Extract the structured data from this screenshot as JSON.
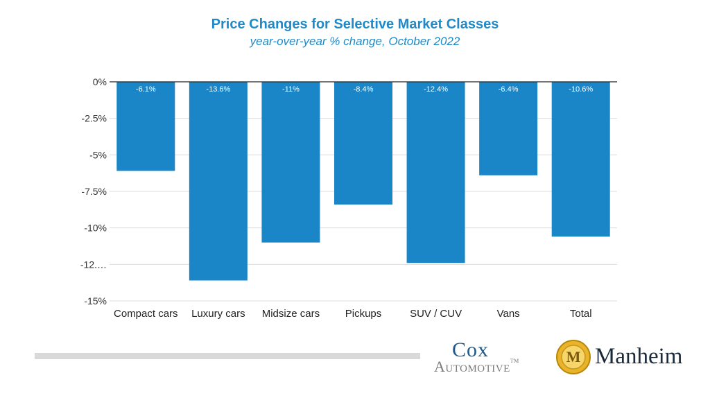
{
  "title": "Price Changes for Selective Market Classes",
  "subtitle": "year-over-year % change, October 2022",
  "colors": {
    "bar": "#1a86c8",
    "title": "#1f8ac7",
    "grid": "#dcdcdc",
    "axis": "#222222"
  },
  "chart_data": {
    "type": "bar",
    "title": "Price Changes for Selective Market Classes",
    "subtitle": "year-over-year % change, October 2022",
    "categories": [
      "Compact cars",
      "Luxury cars",
      "Midsize cars",
      "Pickups",
      "SUV / CUV",
      "Vans",
      "Total"
    ],
    "values": [
      -6.1,
      -13.6,
      -11,
      -8.4,
      -12.4,
      -6.4,
      -10.6
    ],
    "data_labels": [
      "-6.1%",
      "-13.6%",
      "-11%",
      "-8.4%",
      "-12.4%",
      "-6.4%",
      "-10.6%"
    ],
    "yticks": [
      0,
      -2.5,
      -5,
      -7.5,
      -10,
      -12.5,
      -15
    ],
    "ytick_labels": [
      "0%",
      "-2.5%",
      "-5%",
      "-7.5%",
      "-10%",
      "-12.…",
      "-15%"
    ],
    "ylim": [
      -15,
      0
    ],
    "xlabel": "",
    "ylabel": "",
    "grid": true,
    "legend": "none"
  },
  "logos": {
    "cox_top": "Cox",
    "cox_bottom": "Automotive",
    "cox_tm": "TM",
    "manheim": "Manheim",
    "manheim_emblem_letter": "M"
  }
}
